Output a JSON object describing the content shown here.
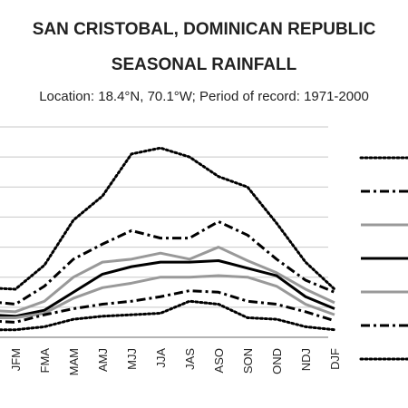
{
  "header": {
    "title_line1": "SAN CRISTOBAL, DOMINICAN REPUBLIC",
    "title_line2": "SEASONAL RAINFALL",
    "subtitle": "Location: 18.4°N, 70.1°W; Period of record: 1971-2000"
  },
  "chart_data": {
    "type": "line",
    "categories": [
      "DJF",
      "JFM",
      "FMA",
      "MAM",
      "AMJ",
      "MJJ",
      "JJA",
      "JAS",
      "ASO",
      "SON",
      "OND",
      "NDJ",
      "DJF"
    ],
    "x_tick_labels": [
      "JFM",
      "FMA",
      "MAM",
      "AMJ",
      "MJJ",
      "JJA",
      "JAS",
      "ASO",
      "SON",
      "OND",
      "NDJ",
      "DJF"
    ],
    "ylim": [
      0,
      700
    ],
    "grid": true,
    "legend_position": "right",
    "series": [
      {
        "style": "dotted",
        "color": "#000000",
        "values": [
          165,
          160,
          240,
          390,
          470,
          610,
          630,
          600,
          535,
          500,
          380,
          250,
          160
        ]
      },
      {
        "style": "dashdot",
        "color": "#000000",
        "values": [
          120,
          110,
          170,
          260,
          310,
          355,
          330,
          330,
          385,
          340,
          260,
          190,
          150
        ]
      },
      {
        "style": "solid",
        "color": "#999999",
        "values": [
          90,
          85,
          120,
          200,
          250,
          260,
          280,
          260,
          300,
          255,
          215,
          160,
          115
        ]
      },
      {
        "style": "solid",
        "color": "#000000",
        "values": [
          75,
          70,
          90,
          150,
          210,
          235,
          250,
          250,
          255,
          230,
          205,
          135,
          95
        ]
      },
      {
        "style": "solid",
        "color": "#999999",
        "values": [
          65,
          65,
          80,
          130,
          165,
          180,
          200,
          200,
          205,
          200,
          170,
          110,
          75
        ]
      },
      {
        "style": "dashdot",
        "color": "#000000",
        "values": [
          55,
          50,
          75,
          95,
          110,
          120,
          135,
          155,
          150,
          120,
          110,
          85,
          55
        ]
      },
      {
        "style": "dotted",
        "color": "#000000",
        "values": [
          25,
          25,
          35,
          60,
          70,
          75,
          80,
          120,
          110,
          65,
          60,
          35,
          25
        ]
      }
    ]
  }
}
